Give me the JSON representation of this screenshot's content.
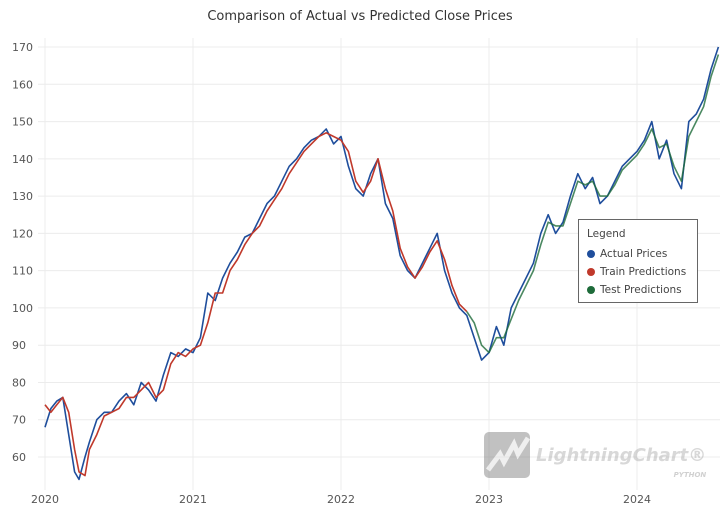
{
  "chart_data": {
    "type": "line",
    "title": "Comparison of Actual vs Predicted Close Prices",
    "xlabel": "",
    "ylabel": "",
    "xlim": [
      2020,
      2024.6
    ],
    "ylim": [
      52,
      172
    ],
    "x_ticks": [
      "2020",
      "2021",
      "2022",
      "2023",
      "2024"
    ],
    "y_ticks": [
      "60",
      "70",
      "80",
      "90",
      "100",
      "110",
      "120",
      "130",
      "140",
      "150",
      "160",
      "170"
    ],
    "grid": true,
    "legend": {
      "title": "Legend",
      "placement": "right"
    },
    "series": [
      {
        "name": "Actual Prices",
        "color": "#1f4e9c",
        "x": [
          2020.0,
          2020.04,
          2020.08,
          2020.12,
          2020.16,
          2020.2,
          2020.23,
          2020.27,
          2020.3,
          2020.35,
          2020.4,
          2020.45,
          2020.5,
          2020.55,
          2020.6,
          2020.65,
          2020.7,
          2020.75,
          2020.8,
          2020.85,
          2020.9,
          2020.95,
          2021.0,
          2021.05,
          2021.1,
          2021.15,
          2021.2,
          2021.25,
          2021.3,
          2021.35,
          2021.4,
          2021.45,
          2021.5,
          2021.55,
          2021.6,
          2021.65,
          2021.7,
          2021.75,
          2021.8,
          2021.85,
          2021.9,
          2021.95,
          2022.0,
          2022.05,
          2022.1,
          2022.15,
          2022.2,
          2022.25,
          2022.3,
          2022.35,
          2022.4,
          2022.45,
          2022.5,
          2022.55,
          2022.6,
          2022.65,
          2022.7,
          2022.75,
          2022.8,
          2022.85,
          2022.9,
          2022.95,
          2023.0,
          2023.05,
          2023.1,
          2023.15,
          2023.2,
          2023.25,
          2023.3,
          2023.35,
          2023.4,
          2023.45,
          2023.5,
          2023.55,
          2023.6,
          2023.65,
          2023.7,
          2023.75,
          2023.8,
          2023.85,
          2023.9,
          2023.95,
          2024.0,
          2024.05,
          2024.1,
          2024.15,
          2024.2,
          2024.25,
          2024.3,
          2024.35,
          2024.4,
          2024.45,
          2024.5,
          2024.55
        ],
        "y": [
          68,
          73,
          75,
          76,
          66,
          56,
          54,
          60,
          64,
          70,
          72,
          72,
          75,
          77,
          74,
          80,
          78,
          75,
          82,
          88,
          87,
          89,
          88,
          92,
          104,
          102,
          108,
          112,
          115,
          119,
          120,
          124,
          128,
          130,
          134,
          138,
          140,
          143,
          145,
          146,
          148,
          144,
          146,
          138,
          132,
          130,
          136,
          140,
          128,
          124,
          114,
          110,
          108,
          112,
          116,
          120,
          110,
          104,
          100,
          98,
          92,
          86,
          88,
          95,
          90,
          100,
          104,
          108,
          112,
          120,
          125,
          120,
          123,
          130,
          136,
          132,
          135,
          128,
          130,
          134,
          138,
          140,
          142,
          145,
          150,
          140,
          145,
          136,
          132,
          150,
          152,
          156,
          164,
          170
        ]
      },
      {
        "name": "Train Predictions",
        "color": "#c0392b",
        "x": [
          2020.0,
          2020.04,
          2020.08,
          2020.12,
          2020.16,
          2020.2,
          2020.23,
          2020.27,
          2020.3,
          2020.35,
          2020.4,
          2020.45,
          2020.5,
          2020.55,
          2020.6,
          2020.65,
          2020.7,
          2020.75,
          2020.8,
          2020.85,
          2020.9,
          2020.95,
          2021.0,
          2021.05,
          2021.1,
          2021.15,
          2021.2,
          2021.25,
          2021.3,
          2021.35,
          2021.4,
          2021.45,
          2021.5,
          2021.55,
          2021.6,
          2021.65,
          2021.7,
          2021.75,
          2021.8,
          2021.85,
          2021.9,
          2021.95,
          2022.0,
          2022.05,
          2022.1,
          2022.15,
          2022.2,
          2022.25,
          2022.3,
          2022.35,
          2022.4,
          2022.45,
          2022.5,
          2022.55,
          2022.6,
          2022.65,
          2022.7,
          2022.75,
          2022.8,
          2022.85
        ],
        "y": [
          74,
          72,
          74,
          76,
          72,
          62,
          56,
          55,
          62,
          66,
          71,
          72,
          73,
          76,
          76,
          78,
          80,
          76,
          78,
          85,
          88,
          87,
          89,
          90,
          96,
          104,
          104,
          110,
          113,
          117,
          120,
          122,
          126,
          129,
          132,
          136,
          139,
          142,
          144,
          146,
          147,
          146,
          145,
          142,
          134,
          131,
          134,
          140,
          132,
          126,
          116,
          111,
          108,
          111,
          115,
          118,
          113,
          106,
          101,
          99
        ]
      },
      {
        "name": "Test Predictions",
        "color": "#1e6b3a",
        "x": [
          2022.85,
          2022.9,
          2022.95,
          2023.0,
          2023.05,
          2023.1,
          2023.15,
          2023.2,
          2023.25,
          2023.3,
          2023.35,
          2023.4,
          2023.45,
          2023.5,
          2023.55,
          2023.6,
          2023.65,
          2023.7,
          2023.75,
          2023.8,
          2023.85,
          2023.9,
          2023.95,
          2024.0,
          2024.05,
          2024.1,
          2024.15,
          2024.2,
          2024.25,
          2024.3,
          2024.35,
          2024.4,
          2024.45,
          2024.5,
          2024.55
        ],
        "y": [
          99,
          96,
          90,
          88,
          92,
          92,
          97,
          102,
          106,
          110,
          117,
          123,
          122,
          122,
          128,
          134,
          133,
          134,
          130,
          130,
          133,
          137,
          139,
          141,
          144,
          148,
          143,
          144,
          138,
          134,
          146,
          150,
          154,
          162,
          168
        ]
      }
    ]
  },
  "watermark": {
    "brand": "LightningChart",
    "sub": "PYTHON"
  }
}
